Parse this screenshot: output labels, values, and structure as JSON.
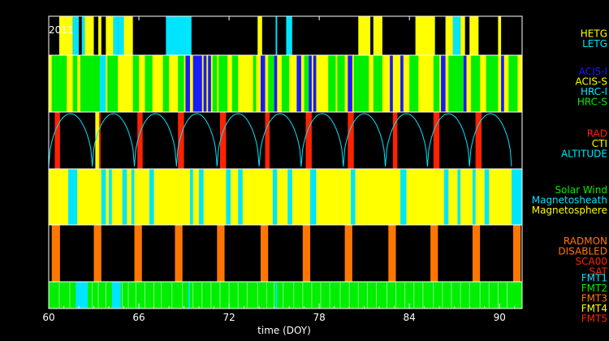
{
  "colors": {
    "yellow": "#ffff00",
    "cyan": "#00e5ff",
    "green": "#00ee00",
    "blue": "#1a1aff",
    "red": "#ff2200",
    "orange": "#ff7700",
    "white": "#ffffff",
    "black": "#000000"
  },
  "chart_data": {
    "type": "timeline",
    "year_label": "2011",
    "xlabel": "time (DOY)",
    "xlim": [
      60,
      91.5
    ],
    "xticks": [
      60,
      66,
      72,
      78,
      84,
      90
    ],
    "tick_labels": [
      "60",
      "66",
      "72",
      "78",
      "84",
      "90"
    ],
    "panels": [
      {
        "id": "grating",
        "legend": [
          {
            "label": "HETG",
            "color": "#ffff00"
          },
          {
            "label": "LETG",
            "color": "#00e5ff"
          }
        ],
        "background": "#000000",
        "segments": [
          [
            60.7,
            61.6,
            "#ffff00"
          ],
          [
            61.6,
            62.0,
            "#00e5ff"
          ],
          [
            62.0,
            62.2,
            "#000000"
          ],
          [
            62.2,
            62.4,
            "#00e5ff"
          ],
          [
            62.4,
            63.0,
            "#ffff00"
          ],
          [
            63.3,
            63.5,
            "#ffff00"
          ],
          [
            63.8,
            64.3,
            "#ffff00"
          ],
          [
            64.3,
            64.6,
            "#00e5ff"
          ],
          [
            64.6,
            65.0,
            "#00e5ff"
          ],
          [
            65.0,
            65.6,
            "#ffff00"
          ],
          [
            67.8,
            69.5,
            "#00e5ff"
          ],
          [
            73.9,
            74.2,
            "#ffff00"
          ],
          [
            75.1,
            75.2,
            "#00e5ff"
          ],
          [
            75.8,
            76.2,
            "#00e5ff"
          ],
          [
            80.6,
            81.4,
            "#ffff00"
          ],
          [
            81.6,
            82.2,
            "#ffff00"
          ],
          [
            84.4,
            85.7,
            "#ffff00"
          ],
          [
            86.4,
            86.9,
            "#ffff00"
          ],
          [
            86.9,
            87.4,
            "#00e5ff"
          ],
          [
            87.4,
            87.7,
            "#ffff00"
          ],
          [
            88.0,
            88.6,
            "#ffff00"
          ],
          [
            89.9,
            90.1,
            "#ffff00"
          ]
        ]
      },
      {
        "id": "instrument",
        "legend": [
          {
            "label": "ACIS-I",
            "color": "#1a1aff"
          },
          {
            "label": "ACIS-S",
            "color": "#ffff00"
          },
          {
            "label": "HRC-I",
            "color": "#00e5ff"
          },
          {
            "label": "HRC-S",
            "color": "#00ee00"
          }
        ],
        "background": "#ffff00",
        "segments": [
          [
            60.2,
            61.2,
            "#00ee00"
          ],
          [
            61.6,
            61.9,
            "#00ee00"
          ],
          [
            62.1,
            63.4,
            "#00ee00"
          ],
          [
            63.4,
            63.8,
            "#00e5ff"
          ],
          [
            63.9,
            64.6,
            "#00ee00"
          ],
          [
            65.6,
            66.0,
            "#00ee00"
          ],
          [
            66.4,
            66.9,
            "#00ee00"
          ],
          [
            67.6,
            68.0,
            "#00ee00"
          ],
          [
            68.6,
            69.0,
            "#00ee00"
          ],
          [
            69.1,
            69.4,
            "#1a1aff"
          ],
          [
            69.6,
            70.5,
            "#1a1aff"
          ],
          [
            70.2,
            70.3,
            "#ffff00"
          ],
          [
            70.6,
            70.8,
            "#1a1aff"
          ],
          [
            70.9,
            71.2,
            "#00ee00"
          ],
          [
            71.3,
            71.9,
            "#00ee00"
          ],
          [
            72.2,
            72.6,
            "#00ee00"
          ],
          [
            73.6,
            73.8,
            "#00ee00"
          ],
          [
            74.1,
            74.4,
            "#1a1aff"
          ],
          [
            74.6,
            75.0,
            "#00ee00"
          ],
          [
            75.0,
            75.2,
            "#1a1aff"
          ],
          [
            75.5,
            76.0,
            "#00ee00"
          ],
          [
            76.5,
            76.8,
            "#1a1aff"
          ],
          [
            77.0,
            77.3,
            "#00ee00"
          ],
          [
            77.3,
            77.5,
            "#1a1aff"
          ],
          [
            77.6,
            77.8,
            "#1a1aff"
          ],
          [
            78.6,
            79.1,
            "#00ee00"
          ],
          [
            79.2,
            79.7,
            "#00ee00"
          ],
          [
            79.9,
            80.2,
            "#1a1aff"
          ],
          [
            80.3,
            81.3,
            "#00ee00"
          ],
          [
            81.6,
            82.2,
            "#00ee00"
          ],
          [
            82.7,
            82.9,
            "#1a1aff"
          ],
          [
            83.4,
            83.6,
            "#1a1aff"
          ],
          [
            84.0,
            84.6,
            "#00ee00"
          ],
          [
            85.6,
            86.0,
            "#00ee00"
          ],
          [
            86.1,
            86.4,
            "#1a1aff"
          ],
          [
            86.6,
            87.6,
            "#00ee00"
          ],
          [
            87.6,
            87.8,
            "#1a1aff"
          ],
          [
            88.1,
            88.7,
            "#00ee00"
          ],
          [
            89.1,
            89.9,
            "#00ee00"
          ],
          [
            90.1,
            90.3,
            "#1a1aff"
          ],
          [
            90.6,
            91.2,
            "#00ee00"
          ]
        ]
      },
      {
        "id": "radiation",
        "legend": [
          {
            "label": "RAD",
            "color": "#ff2200"
          },
          {
            "label": "CTI",
            "color": "#ffff00"
          },
          {
            "label": "ALTITUDE",
            "color": "#00e5ff"
          }
        ],
        "background": "#000000",
        "segments": [
          [
            60.4,
            60.75,
            "#ff2200"
          ],
          [
            63.1,
            63.35,
            "#ffff00"
          ],
          [
            63.35,
            63.45,
            "#ff2200"
          ],
          [
            65.9,
            66.25,
            "#ff2200"
          ],
          [
            68.6,
            69.0,
            "#ff2200"
          ],
          [
            71.4,
            71.8,
            "#ff2200"
          ],
          [
            74.4,
            74.7,
            "#ff2200"
          ],
          [
            77.1,
            77.5,
            "#ff2200"
          ],
          [
            79.9,
            80.3,
            "#ff2200"
          ],
          [
            82.9,
            83.2,
            "#ff2200"
          ],
          [
            85.6,
            86.0,
            "#ff2200"
          ],
          [
            88.4,
            88.8,
            "#ff2200"
          ]
        ],
        "altitude_minima": [
          60.0,
          62.9,
          65.7,
          68.5,
          71.2,
          74.0,
          76.8,
          79.6,
          82.4,
          85.2,
          88.0,
          90.8
        ]
      },
      {
        "id": "region",
        "legend": [
          {
            "label": "Solar Wind",
            "color": "#00ee00"
          },
          {
            "label": "Magnetosheath",
            "color": "#00e5ff"
          },
          {
            "label": "Magnetosphere",
            "color": "#ffff00"
          }
        ],
        "background": "#ffff00",
        "segments": [
          [
            61.3,
            61.9,
            "#00e5ff"
          ],
          [
            63.5,
            63.8,
            "#00e5ff"
          ],
          [
            64.0,
            64.2,
            "#00e5ff"
          ],
          [
            64.9,
            65.2,
            "#00e5ff"
          ],
          [
            65.5,
            65.7,
            "#00e5ff"
          ],
          [
            66.7,
            67.0,
            "#00e5ff"
          ],
          [
            69.4,
            69.6,
            "#00e5ff"
          ],
          [
            70.0,
            70.3,
            "#00e5ff"
          ],
          [
            71.8,
            72.1,
            "#00e5ff"
          ],
          [
            72.6,
            72.9,
            "#00e5ff"
          ],
          [
            74.9,
            75.2,
            "#00e5ff"
          ],
          [
            75.9,
            76.2,
            "#00e5ff"
          ],
          [
            77.4,
            77.8,
            "#00e5ff"
          ],
          [
            80.1,
            80.4,
            "#00e5ff"
          ],
          [
            83.4,
            83.8,
            "#00e5ff"
          ],
          [
            86.3,
            86.6,
            "#00e5ff"
          ],
          [
            87.2,
            87.4,
            "#00e5ff"
          ],
          [
            88.2,
            88.4,
            "#00e5ff"
          ],
          [
            89.0,
            89.3,
            "#00e5ff"
          ],
          [
            90.8,
            91.5,
            "#00e5ff"
          ]
        ]
      },
      {
        "id": "radmon",
        "legend": [
          {
            "label": "RADMON",
            "color": "#ff7700"
          },
          {
            "label": "DISABLED",
            "color": "#ff7700"
          },
          {
            "label": "SCA00",
            "color": "#ff2200"
          },
          {
            "label": "SAT",
            "color": "#ff2200"
          }
        ],
        "background": "#000000",
        "segments": [
          [
            60.2,
            60.75,
            "#ff7700"
          ],
          [
            63.0,
            63.5,
            "#ff7700"
          ],
          [
            65.7,
            66.2,
            "#ff7700"
          ],
          [
            68.4,
            68.9,
            "#ff7700"
          ],
          [
            71.2,
            71.7,
            "#ff7700"
          ],
          [
            74.1,
            74.6,
            "#ff7700"
          ],
          [
            76.9,
            77.4,
            "#ff7700"
          ],
          [
            79.7,
            80.2,
            "#ff7700"
          ],
          [
            82.6,
            83.1,
            "#ff7700"
          ],
          [
            85.4,
            85.9,
            "#ff7700"
          ],
          [
            88.2,
            88.7,
            "#ff7700"
          ],
          [
            90.9,
            91.4,
            "#ff7700"
          ]
        ]
      },
      {
        "id": "format",
        "legend": [
          {
            "label": "FMT1",
            "color": "#00e5ff"
          },
          {
            "label": "FMT2",
            "color": "#00ee00"
          },
          {
            "label": "FMT3",
            "color": "#ff7700"
          },
          {
            "label": "FMT4",
            "color": "#ffff00"
          },
          {
            "label": "FMT5",
            "color": "#ff2200"
          }
        ],
        "background": "#00ee00",
        "segments": [
          [
            61.8,
            62.6,
            "#00e5ff"
          ],
          [
            64.2,
            64.8,
            "#00e5ff"
          ],
          [
            69.3,
            69.4,
            "#00e5ff"
          ],
          [
            75.1,
            75.2,
            "#00e5ff"
          ]
        ],
        "tick_marks": [
          60.7,
          61.4,
          62.9,
          63.3,
          63.8,
          64.9,
          65.3,
          65.8,
          66.4,
          67.0,
          67.5,
          68.2,
          68.9,
          69.6,
          70.2,
          70.8,
          71.4,
          72.0,
          72.6,
          73.2,
          73.9,
          74.5,
          75.0,
          75.6,
          76.3,
          76.9,
          77.5,
          78.1,
          78.7,
          79.4,
          80.0,
          80.6,
          81.2,
          81.8,
          82.5,
          83.1,
          83.7,
          84.3,
          84.9,
          85.6,
          86.2,
          86.8,
          87.4,
          88.0,
          88.7,
          89.3,
          89.9,
          90.5
        ]
      }
    ]
  }
}
